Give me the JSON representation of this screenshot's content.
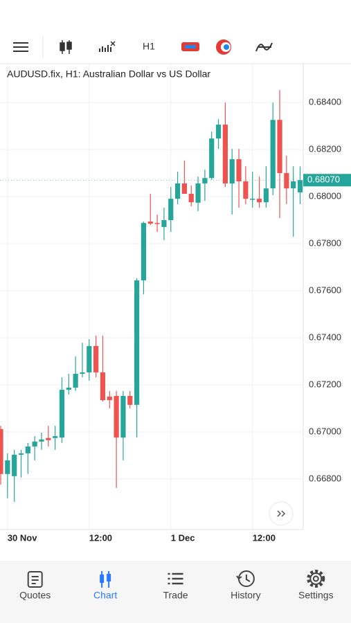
{
  "toolbar": {
    "timeframe": "H1"
  },
  "chart_data": {
    "type": "candlestick",
    "title": "AUDUSD.fix, H1: Australian Dollar vs US Dollar",
    "up_color": "#26a69a",
    "down_color": "#ef5350",
    "categories": [
      null,
      "30 Nov",
      null,
      null,
      null,
      null,
      null,
      null,
      null,
      null,
      null,
      null,
      null,
      "12:00",
      null,
      null,
      null,
      null,
      null,
      null,
      null,
      null,
      null,
      null,
      null,
      "1 Dec",
      null,
      null,
      null,
      null,
      null,
      null,
      null,
      null,
      null,
      null,
      null,
      "12:00",
      null,
      null,
      null,
      null,
      null,
      null,
      null
    ],
    "open": [
      0.67012,
      0.66821,
      0.66812,
      0.66903,
      0.66909,
      0.66938,
      0.66959,
      0.66974,
      0.66974,
      0.66976,
      0.67179,
      0.67188,
      0.67247,
      0.67253,
      0.67365,
      0.67253,
      0.6715,
      0.67153,
      0.66976,
      0.67153,
      0.67115,
      0.67644,
      0.67894,
      0.67888,
      0.67871,
      0.679,
      0.67991,
      0.68056,
      0.68012,
      0.67974,
      0.68056,
      0.68079,
      0.68247,
      0.68306,
      0.68056,
      0.68159,
      0.68065,
      0.67991,
      0.67991,
      0.67976,
      0.68035,
      0.68326,
      0.681,
      0.68035,
      0.68018
    ],
    "high": [
      0.67026,
      0.66909,
      0.66924,
      0.66924,
      0.66953,
      0.66982,
      0.66997,
      0.67026,
      0.67026,
      0.67232,
      0.67247,
      0.67321,
      0.67379,
      0.67394,
      0.67409,
      0.67409,
      0.67174,
      0.67174,
      0.67174,
      0.67174,
      0.67653,
      0.67894,
      0.68012,
      0.67924,
      0.67953,
      0.68041,
      0.68106,
      0.68153,
      0.68047,
      0.68085,
      0.68115,
      0.68276,
      0.68329,
      0.684,
      0.68203,
      0.68203,
      0.68129,
      0.68106,
      0.68085,
      0.68129,
      0.684,
      0.68453,
      0.68174,
      0.68129,
      0.68129
    ],
    "low": [
      0.66776,
      0.66718,
      0.66703,
      0.66806,
      0.66821,
      0.66879,
      0.66924,
      0.66938,
      0.66924,
      0.66953,
      0.67159,
      0.67174,
      0.67232,
      0.67218,
      0.67232,
      0.67129,
      0.671,
      0.66762,
      0.66879,
      0.671,
      0.66976,
      0.67585,
      0.67879,
      0.6785,
      0.67815,
      0.6785,
      0.67968,
      0.68012,
      0.67959,
      0.67938,
      0.67982,
      0.68071,
      0.68203,
      0.68041,
      0.67924,
      0.67953,
      0.67968,
      0.67953,
      0.67953,
      0.67953,
      0.68006,
      0.67909,
      0.67968,
      0.67829,
      0.67968
    ],
    "close": [
      0.66821,
      0.66879,
      0.66903,
      0.66909,
      0.66938,
      0.66959,
      0.66968,
      0.66965,
      0.66982,
      0.67179,
      0.67188,
      0.67247,
      0.67253,
      0.67365,
      0.67253,
      0.67135,
      0.67135,
      0.66976,
      0.67153,
      0.67115,
      0.67644,
      0.67888,
      0.67885,
      0.67885,
      0.679,
      0.67991,
      0.68056,
      0.68012,
      0.67976,
      0.68056,
      0.68079,
      0.68247,
      0.68306,
      0.68056,
      0.68159,
      0.68065,
      0.67991,
      0.67991,
      0.67976,
      0.68035,
      0.68326,
      0.681,
      0.68035,
      0.68065,
      0.6807
    ],
    "ylim": [
      0.66585,
      0.68565
    ],
    "yticks": [
      {
        "value": 0.668,
        "label": "0.66800"
      },
      {
        "value": 0.67,
        "label": "0.67000"
      },
      {
        "value": 0.672,
        "label": "0.67200"
      },
      {
        "value": 0.674,
        "label": "0.67400"
      },
      {
        "value": 0.676,
        "label": "0.67600"
      },
      {
        "value": 0.678,
        "label": "0.67800"
      },
      {
        "value": 0.68,
        "label": "0.68000"
      },
      {
        "value": 0.682,
        "label": "0.68200"
      },
      {
        "value": 0.684,
        "label": "0.68400"
      }
    ],
    "grid": true,
    "last_price": {
      "value": 0.6807,
      "label": "0.68070"
    }
  },
  "nav": {
    "active": 1,
    "tabs": [
      "Quotes",
      "Chart",
      "Trade",
      "History",
      "Settings"
    ]
  }
}
